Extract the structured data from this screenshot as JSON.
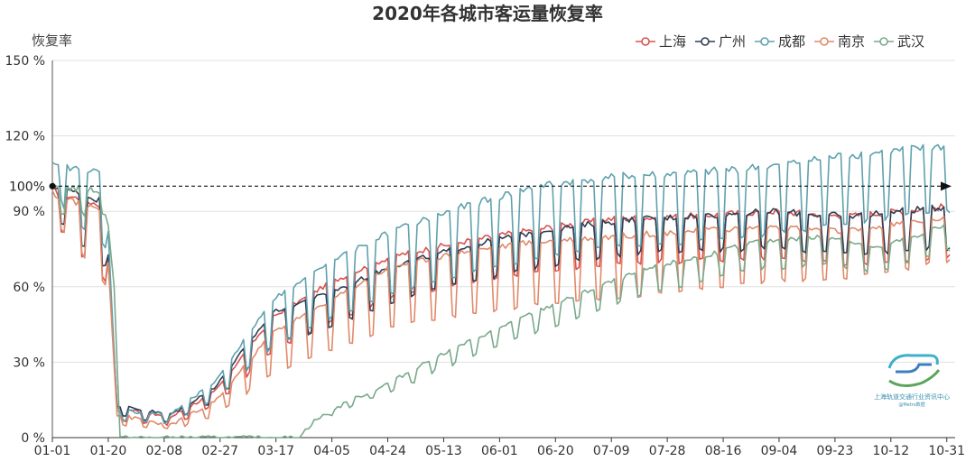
{
  "chart_data": {
    "type": "line",
    "title": "2020年各城市客运量恢复率",
    "ylabel": "恢复率",
    "xlabel": "",
    "ylim": [
      0,
      150
    ],
    "yticks": [
      "0 %",
      "30 %",
      "60 %",
      "90 %",
      "120 %",
      "150 %"
    ],
    "ytick_values": [
      0,
      30,
      60,
      90,
      120,
      150
    ],
    "xticks": [
      "01-01",
      "01-20",
      "02-08",
      "02-27",
      "03-17",
      "04-05",
      "04-24",
      "05-13",
      "06-01",
      "06-20",
      "07-09",
      "07-28",
      "08-16",
      "09-04",
      "09-23",
      "10-12",
      "10-31"
    ],
    "reference_line": {
      "value": 100,
      "label": "100%"
    },
    "grid": "horizontal",
    "legend_position": "top-right",
    "period": {
      "start": "01-01",
      "end": "10-31"
    },
    "series": [
      {
        "name": "上海",
        "color": "#d9534f",
        "trend": [
          [
            0,
            98
          ],
          [
            18,
            92
          ],
          [
            22,
            12
          ],
          [
            40,
            8
          ],
          [
            55,
            18
          ],
          [
            75,
            48
          ],
          [
            95,
            62
          ],
          [
            115,
            72
          ],
          [
            140,
            78
          ],
          [
            165,
            83
          ],
          [
            190,
            87
          ],
          [
            215,
            88
          ],
          [
            245,
            90
          ],
          [
            270,
            88
          ],
          [
            305,
            92
          ]
        ],
        "weekend_drop": [
          [
            0,
            0.88
          ],
          [
            25,
            0.6
          ],
          [
            60,
            0.7
          ],
          [
            120,
            0.78
          ],
          [
            200,
            0.8
          ],
          [
            305,
            0.78
          ]
        ]
      },
      {
        "name": "广州",
        "color": "#2f3e55",
        "trend": [
          [
            0,
            100
          ],
          [
            18,
            94
          ],
          [
            22,
            13
          ],
          [
            40,
            9
          ],
          [
            55,
            20
          ],
          [
            75,
            50
          ],
          [
            95,
            58
          ],
          [
            115,
            68
          ],
          [
            140,
            76
          ],
          [
            165,
            82
          ],
          [
            190,
            86
          ],
          [
            215,
            88
          ],
          [
            245,
            90
          ],
          [
            270,
            88
          ],
          [
            305,
            92
          ]
        ],
        "weekend_drop": [
          [
            0,
            0.9
          ],
          [
            25,
            0.65
          ],
          [
            60,
            0.72
          ],
          [
            120,
            0.8
          ],
          [
            200,
            0.85
          ],
          [
            305,
            0.82
          ]
        ]
      },
      {
        "name": "成都",
        "color": "#5fa1ad",
        "trend": [
          [
            0,
            108
          ],
          [
            18,
            105
          ],
          [
            22,
            11
          ],
          [
            40,
            9
          ],
          [
            55,
            22
          ],
          [
            75,
            55
          ],
          [
            95,
            70
          ],
          [
            115,
            82
          ],
          [
            140,
            92
          ],
          [
            165,
            100
          ],
          [
            190,
            104
          ],
          [
            215,
            105
          ],
          [
            245,
            108
          ],
          [
            268,
            112
          ],
          [
            305,
            116
          ]
        ],
        "weekend_drop": [
          [
            0,
            0.9
          ],
          [
            25,
            0.65
          ],
          [
            60,
            0.66
          ],
          [
            120,
            0.7
          ],
          [
            200,
            0.73
          ],
          [
            305,
            0.78
          ]
        ]
      },
      {
        "name": "南京",
        "color": "#e08a6a",
        "trend": [
          [
            0,
            97
          ],
          [
            18,
            90
          ],
          [
            22,
            9
          ],
          [
            40,
            5
          ],
          [
            55,
            14
          ],
          [
            75,
            42
          ],
          [
            95,
            55
          ],
          [
            115,
            68
          ],
          [
            140,
            74
          ],
          [
            165,
            78
          ],
          [
            190,
            80
          ],
          [
            215,
            82
          ],
          [
            245,
            84
          ],
          [
            270,
            82
          ],
          [
            305,
            88
          ]
        ],
        "weekend_drop": [
          [
            0,
            0.9
          ],
          [
            25,
            0.6
          ],
          [
            60,
            0.6
          ],
          [
            120,
            0.65
          ],
          [
            200,
            0.7
          ],
          [
            305,
            0.8
          ]
        ]
      },
      {
        "name": "武汉",
        "color": "#7aa98c",
        "trend": [
          [
            0,
            100
          ],
          [
            18,
            98
          ],
          [
            21,
            60
          ],
          [
            23,
            0
          ],
          [
            84,
            0
          ],
          [
            88,
            6
          ],
          [
            100,
            14
          ],
          [
            115,
            22
          ],
          [
            130,
            32
          ],
          [
            145,
            40
          ],
          [
            160,
            48
          ],
          [
            175,
            55
          ],
          [
            190,
            62
          ],
          [
            205,
            68
          ],
          [
            220,
            72
          ],
          [
            240,
            78
          ],
          [
            265,
            80
          ],
          [
            280,
            75
          ],
          [
            305,
            85
          ]
        ],
        "weekend_drop": [
          [
            0,
            0.9
          ],
          [
            84,
            0.9
          ],
          [
            120,
            0.82
          ],
          [
            200,
            0.85
          ],
          [
            305,
            0.88
          ]
        ]
      }
    ]
  },
  "logo": {
    "text": "上海轨道交通行业资讯中心",
    "sub": "@Metro数据"
  }
}
